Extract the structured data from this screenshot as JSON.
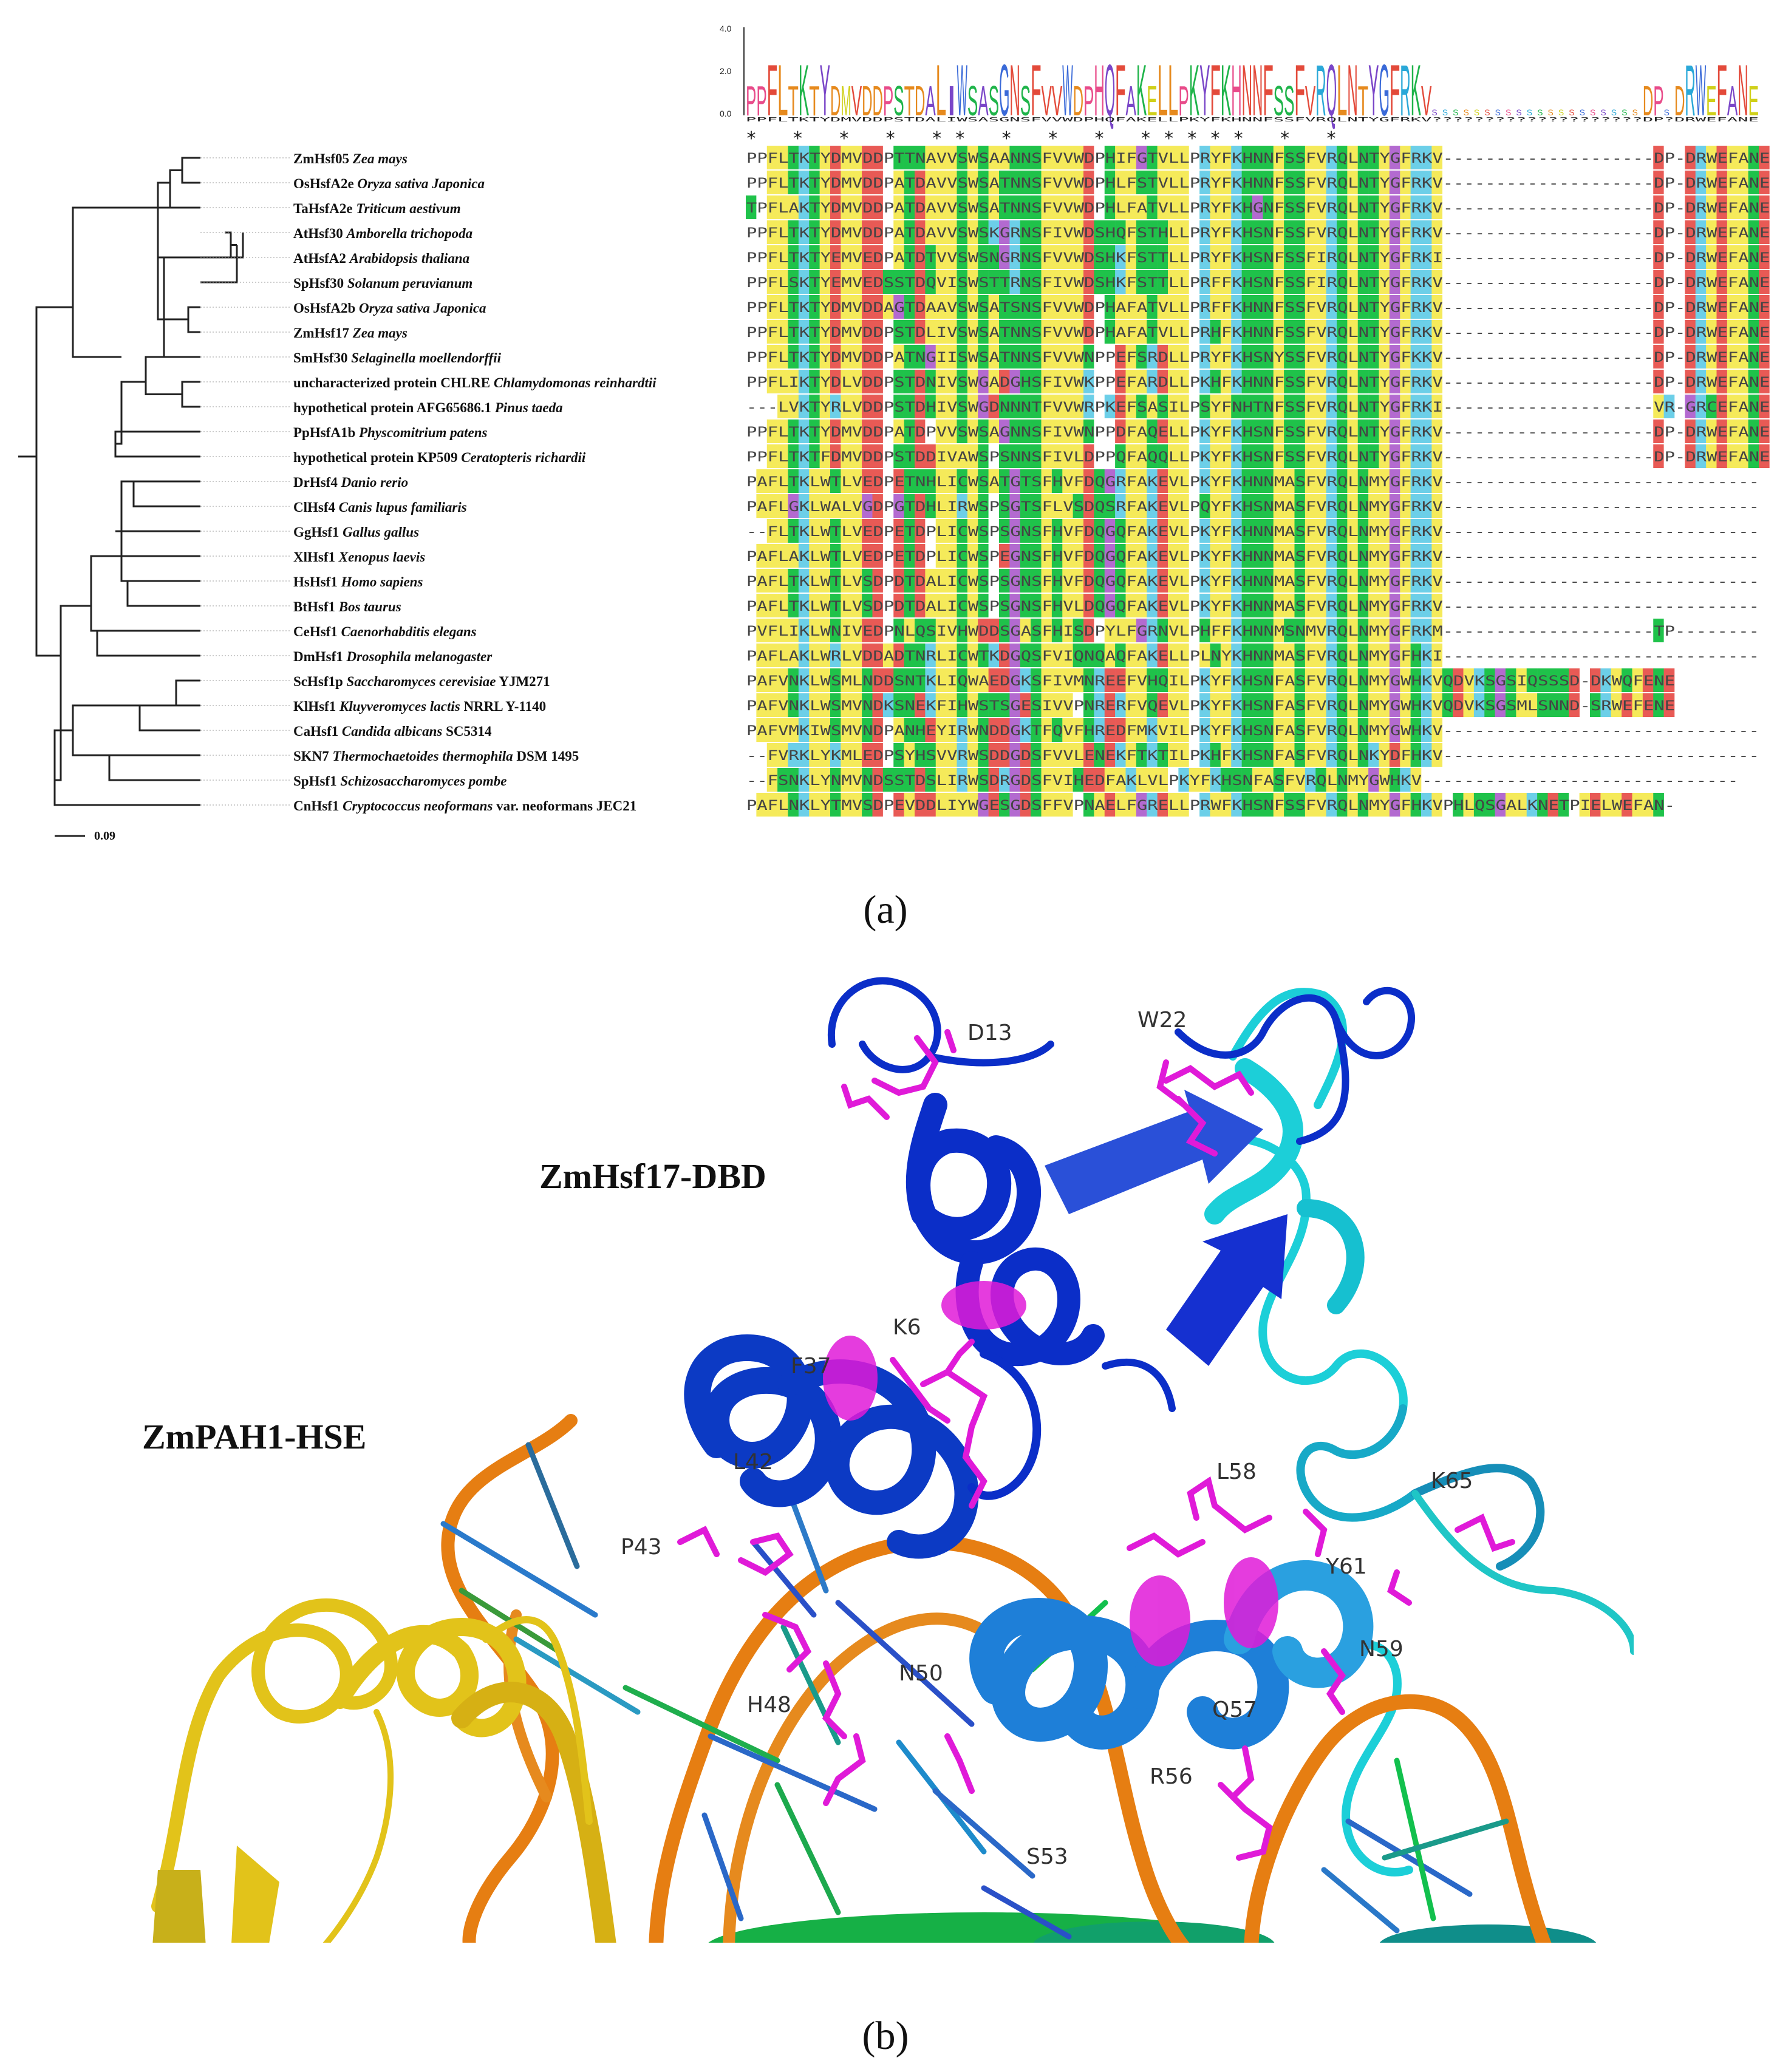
{
  "panel_a": {
    "caption": "(a)",
    "scale_bar": "0.09",
    "logo": {
      "ticks": [
        "4.0",
        "2.0",
        "0.0"
      ],
      "consensus": "PPFLTKTYDMVDDPSTDALIWSASGNSFVVWDPHQFAKELLPKYFKHNNFSSFVRQLNTYGFRKV????????????????????DP?DRWEFANE"
    },
    "conservation_marks": "*    *     *                *  **   *  *  *  ***** *   *",
    "sequences": [
      {
        "prefix": "ZmHsf05",
        "species": "Zea mays",
        "suffix": "",
        "seq": "PPFLTKTYDMVDDPTTNAVVSWSAANNSFVVWDPHIFGTVLLPRYFKHNNFSSFVRQLNTYGFRKV--------------------DP-DRWEFANE"
      },
      {
        "prefix": "OsHsfA2e",
        "species": "Oryza sativa Japonica",
        "suffix": "",
        "seq": "PPFLTKTYDMVDDPATDAVVSWSATNNSFVVWDPHLFSTVLLPRYFKHNNFSSFVRQLNTYGFRKV--------------------DP-DRWEFANE"
      },
      {
        "prefix": "TaHsfA2e",
        "species": "Triticum aestivum",
        "suffix": "",
        "seq": "TPFLAKTYDMVDDPATDAVVSWSATNNSFVVWDPHLFATVLLPRYFKHGNFSSFVRQLNTYGFRKV--------------------DP-DRWEFANE"
      },
      {
        "prefix": "AtHsf30",
        "species": "Amborella trichopoda",
        "suffix": "",
        "seq": "PPFLTKTYDMVDDPATDAVVSWSKGRNSFIVWDSHQFSTHLLPRYFKHSNFSSFVRQLNTYGFRKV--------------------DP-DRWEFANE"
      },
      {
        "prefix": "AtHsfA2",
        "species": "Arabidopsis thaliana",
        "suffix": "",
        "seq": "PPFLTKTYEMVEDPATDTVVSWSNGRNSFVVWDSHKFSTTLLPRYFKHSNFSSFIRQLNTYGFRKI--------------------DP-DRWEFANE"
      },
      {
        "prefix": "SpHsf30",
        "species": "Solanum peruvianum",
        "suffix": "",
        "seq": "PPFLSKTYEMVEDSSTDQVISWSTTRNSFIVWDSHKFSTTLLPRFFKHSNFSSFIRQLNTYGFRKV--------------------DP-DRWEFANE"
      },
      {
        "prefix": "OsHsfA2b",
        "species": "Oryza sativa Japonica",
        "suffix": "",
        "seq": "PPFLTKTYDMVDDAGTDAAVSWSATSNSFVVWDPHAFATVLLPRFFKHNNFSSFVRQLNTYGFRKV--------------------DP-DRWEFANE"
      },
      {
        "prefix": "ZmHsf17",
        "species": "Zea mays",
        "suffix": "",
        "seq": "PPFLTKTYDMVDDPSTDLIVSWSATNNSFVVWDPHAFATVLLPRHFKHNNFSSFVRQLNTYGFRKV--------------------DP-DRWEFANE"
      },
      {
        "prefix": "SmHsf30",
        "species": "Selaginella moellendorffii",
        "suffix": "",
        "seq": "PPFLTKTYDMVDDPATNGIISWSATNNSFVVWNPPEFSRDLLPRYFKHSNYSSFVRQLNTYGFKKV--------------------DP-DRWEFANE"
      },
      {
        "prefix": "uncharacterized protein CHLRE",
        "species": "Chlamydomonas reinhardtii",
        "suffix": "",
        "seq": "PPFLIKTYDLVDDPSTDNIVSWGADGHSFIVWKPPEFARDLLPKHFKHNNFSSFVRQLNTYGFRKV--------------------DP-DRWEFANE"
      },
      {
        "prefix": "hypothetical protein AFG65686.1",
        "species": "Pinus taeda",
        "suffix": "",
        "seq": "---LVKTYRLVDDPSTDHIVSWGDNNNTFVVWRPKEFSASILPSYFNHTNFSSFVRQLNTYGFRKI--------------------VR-GRCEFANE"
      },
      {
        "prefix": "PpHsfA1b",
        "species": "Physcomitrium patens",
        "suffix": "",
        "seq": "PPFLTKTYDMVDDPATDPVVSWSAGNNSFIVWNPPDFAQELLPKYFKHSNFSSFVRQLNTYGFRKV--------------------DP-DRWEFANE"
      },
      {
        "prefix": "hypothetical protein KP509",
        "species": "Ceratopteris richardii",
        "suffix": "",
        "seq": "PPFLTKTFDMVDDPSTDDIVAWSPSNNSFIVLDPPQFAQQLLPKYFKHSNFSSFVRQLNTYGFRKV--------------------DP-DRWEFANE"
      },
      {
        "prefix": "DrHsf4",
        "species": "Danio rerio",
        "suffix": "",
        "seq": "PAFLTKLWTLVEDPETNHLICWSATGTSFHVFDQGRFAKEVLPKYFKHNNMASFVRQLNMYGFRKV------------------------------"
      },
      {
        "prefix": "ClHsf4",
        "species": "Canis lupus familiaris",
        "suffix": "",
        "seq": "PAFLGKLWALVGDPGTDHLIRWSPSGTSFLVSDQSRFAKEVLPQYFKHSNMASFVRQLNMYGFRKV------------------------------"
      },
      {
        "prefix": "GgHsf1",
        "species": "Gallus gallus",
        "suffix": "",
        "seq": "--FLTKLWTLVEDPETDPLICWSPSGNSFHVFDQGQFAKEVLPKYFKHNNMASFVRQLNMYGFRKV------------------------------"
      },
      {
        "prefix": "XlHsf1",
        "species": "Xenopus laevis",
        "suffix": "",
        "seq": "PAFLAKLWTLVEDPETDPLICWSPEGNSFHVFDQGQFAKEVLPKYFKHNNMASFVRQLNMYGFRKV------------------------------"
      },
      {
        "prefix": "HsHsf1",
        "species": "Homo sapiens",
        "suffix": "",
        "seq": "PAFLTKLWTLVSDPDTDALICWSPSGNSFHVFDQGQFAKEVLPKYFKHNNMASFVRQLNMYGFRKV------------------------------"
      },
      {
        "prefix": "BtHsf1",
        "species": "Bos taurus",
        "suffix": "",
        "seq": "PAFLTKLWTLVSDPDTDALICWSPSGNSFHVLDQGQFAKEVLPKYFKHNNMASFVRQLNMYGFRKV------------------------------"
      },
      {
        "prefix": "CeHsf1",
        "species": "Caenorhabditis elegans",
        "suffix": "",
        "seq": "PVFLIKLWNIVEDPNLQSIVHWDDSGASFHISDPYLFGRNVLPHFFKHNNMSNMVRQLNMYGFRKM--------------------TP--------"
      },
      {
        "prefix": "DmHsf1",
        "species": "Drosophila melanogaster",
        "suffix": "",
        "seq": "PAFLAKLWRLVDDADTNRLICWTKDGQSFVIQNQAQFAKELLPLNYKHNNMASFVRQLNMYGFHKI------------------------------"
      },
      {
        "prefix": "ScHsf1p",
        "species": "Saccharomyces cerevisiae",
        "suffix": "YJM271",
        "seq": "PAFVNKLWSMLNDDSNTKLIQWAEDGKSFIVMNREEFVHQILPKYFKHSNFASFVRQLNMYGWHKVQDVKSGSIQSSSD-DKWQFENE"
      },
      {
        "prefix": "KlHsf1",
        "species": "Kluyveromyces lactis",
        "suffix": "NRRL Y-1140",
        "seq": "PAFVNKLWSMVNDKSNEKFIHWSTSGESIVVPNRERFVQEVLPKYFKHSNFASFVRQLNMYGWHKVQDVKSGSMLSNND-SRWEFENE"
      },
      {
        "prefix": "CaHsf1",
        "species": "Candida albicans",
        "suffix": "SC5314",
        "seq": "PAFVMKIWSMVNDPANHEYIRWNDDGKTFQVFHREDFMKVILPKYFKHSNFASFVRQLNMYGWHKV------------------------------"
      },
      {
        "prefix": "SKN7",
        "species": "Thermochaetoides thermophila",
        "suffix": "DSM 1495",
        "seq": "--FVRKLYKMLEDPSYHSVVRWSDDGDSFVVLENEKFTKTILPKHFKHSNFASFVRQLNKYDFHKV------------------------------"
      },
      {
        "prefix": "SpHsf1",
        "species": "Schizosaccharomyces pombe",
        "suffix": "",
        "seq": "--FSNKLYNMVNDSSTDSLIRWSDRGDSFVIHEDFAKLVLPKYFKHSNFASFVRQLNMYGWHKV------------------------------"
      },
      {
        "prefix": "CnHsf1",
        "species": "Cryptococcus neoformans",
        "suffix": "var. neoformans JEC21",
        "seq": "PAFLNKLYTMVSDPEVDDLIYWGESGDSFFVPNAELFGRELLPRWFKHSNFSSFVRQLNMYGFHKVPHLQSGALKNETPIELWEFAN-"
      }
    ]
  },
  "panel_b": {
    "caption": "(b)",
    "label_dbd": "ZmHsf17-DBD",
    "label_hse": "ZmPAH1-HSE",
    "residues": [
      "D13",
      "W22",
      "K6",
      "F37",
      "L42",
      "P43",
      "L58",
      "K65",
      "Y61",
      "N59",
      "N50",
      "H48",
      "Q57",
      "R56",
      "S53"
    ]
  },
  "colors": {
    "hydrophobic": "#f5ea5a",
    "polar": "#1fc24a",
    "acidic": "#e85a55",
    "basic": "#6ccfe8",
    "glycine": "#b36ad0",
    "proline_gap": "#ffffff",
    "helix_blue": "#0b2ec8",
    "helix_cyan": "#1ccfd8",
    "helix_yellow": "#e2c31a",
    "dna": "#e67e12",
    "sidechain": "#e01ad8"
  }
}
